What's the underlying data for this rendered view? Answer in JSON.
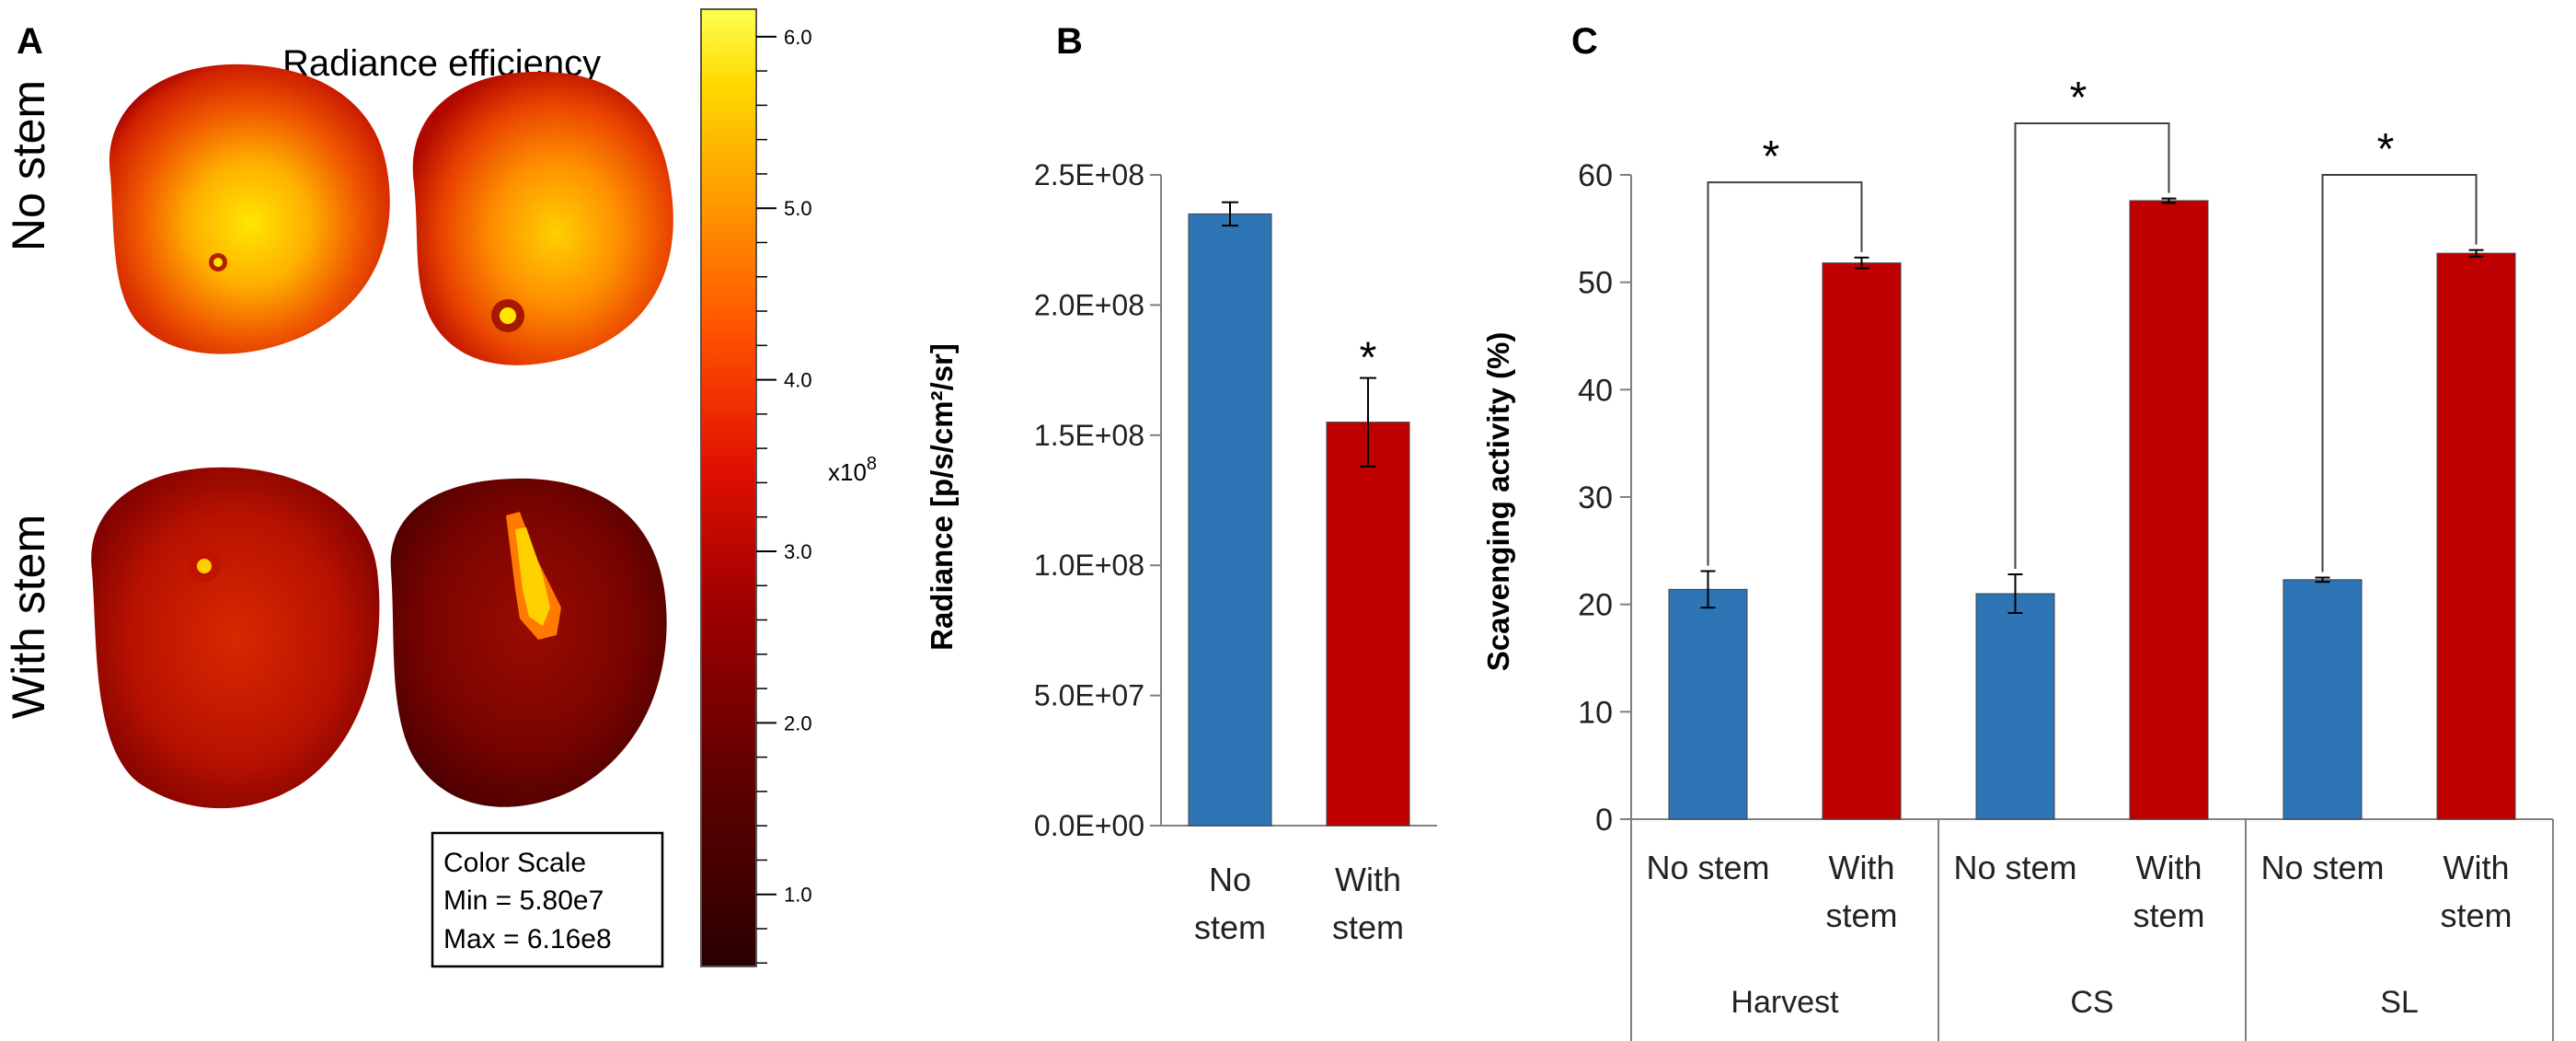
{
  "panel_a": {
    "letter": "A",
    "title": "Radiance efficiency",
    "row_labels": [
      "No stem",
      "With stem"
    ],
    "colorbar": {
      "ticks": [
        "1.0",
        "2.0",
        "3.0",
        "4.0",
        "5.0",
        "6.0"
      ],
      "tick_values": [
        1.0,
        2.0,
        3.0,
        4.0,
        5.0,
        6.0
      ],
      "range": [
        0.58,
        6.16
      ],
      "exponent_base": "x10",
      "exponent_power": "8"
    },
    "color_scale_box": {
      "title": "Color Scale",
      "min": "Min = 5.80e7",
      "max": "Max = 6.16e8"
    }
  },
  "chart_data": [
    {
      "type": "bar",
      "panel": "B",
      "categories": [
        "No stem",
        "With stem"
      ],
      "category_lines": [
        [
          "No",
          "stem"
        ],
        [
          "With",
          "stem"
        ]
      ],
      "values": [
        235000000,
        155000000
      ],
      "errors": [
        4500000,
        17000000
      ],
      "colors": [
        "#2e75b6",
        "#c00000"
      ],
      "ylabel": "Radiance [p/s/cm²/sr]",
      "ylim": [
        0,
        250000000
      ],
      "yticks": [
        0,
        50000000,
        100000000,
        150000000,
        200000000,
        250000000
      ],
      "ytick_labels": [
        "0.0E+00",
        "5.0E+07",
        "1.0E+08",
        "1.5E+08",
        "2.0E+08",
        "2.5E+08"
      ],
      "annotations": [
        {
          "category": "With stem",
          "text": "*"
        }
      ]
    },
    {
      "type": "bar",
      "panel": "C",
      "groups": [
        "Harvest",
        "CS",
        "SL"
      ],
      "categories": [
        "No stem",
        "With stem",
        "No stem",
        "With stem",
        "No stem",
        "With stem"
      ],
      "category_lines": [
        [
          "No stem"
        ],
        [
          "With",
          "stem"
        ],
        [
          "No stem"
        ],
        [
          "With",
          "stem"
        ],
        [
          "No stem"
        ],
        [
          "With",
          "stem"
        ]
      ],
      "values": [
        21.4,
        51.8,
        21.0,
        57.6,
        22.3,
        52.7
      ],
      "errors": [
        1.7,
        0.5,
        1.8,
        0.2,
        0.2,
        0.3
      ],
      "colors": [
        "#2e75b6",
        "#c00000",
        "#2e75b6",
        "#c00000",
        "#2e75b6",
        "#c00000"
      ],
      "ylabel": "Scavenging activity (%)",
      "ylim": [
        0,
        60
      ],
      "yticks": [
        0,
        10,
        20,
        30,
        40,
        50,
        60
      ],
      "ytick_labels": [
        "0",
        "10",
        "20",
        "30",
        "40",
        "50",
        "60"
      ],
      "significance": [
        {
          "group": "Harvest",
          "text": "*"
        },
        {
          "group": "CS",
          "text": "*"
        },
        {
          "group": "SL",
          "text": "*"
        }
      ]
    }
  ],
  "panel_letters": {
    "b": "B",
    "c": "C"
  }
}
